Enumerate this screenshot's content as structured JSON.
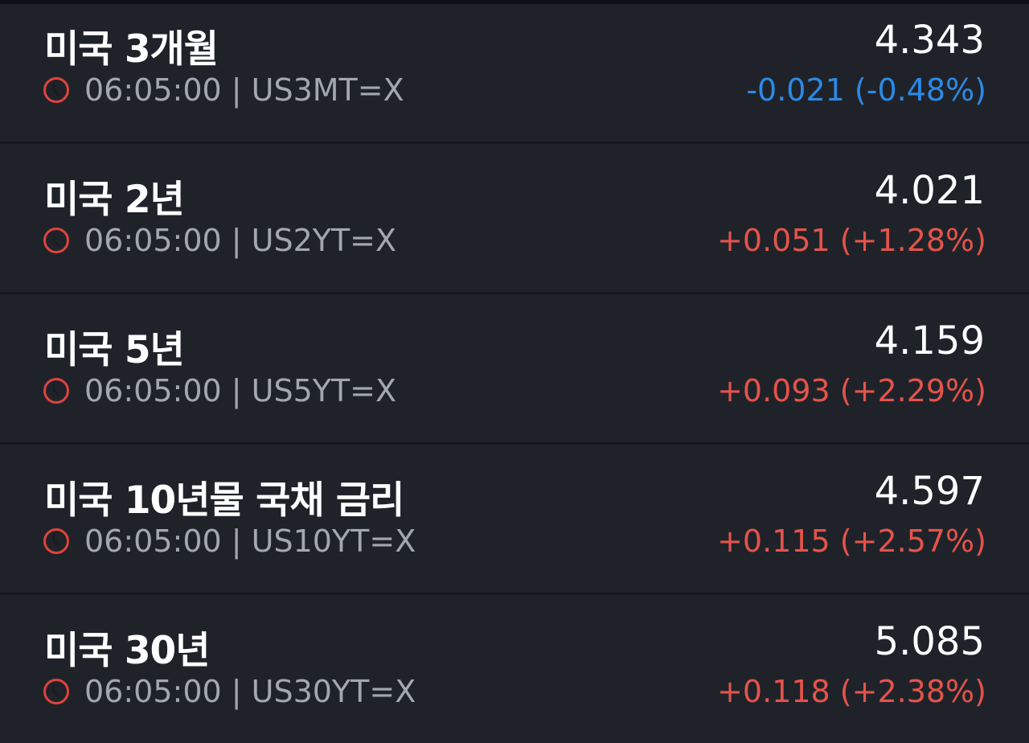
{
  "colors": {
    "up": "#e5534b",
    "down": "#2b8ae6",
    "clock": "#e0433c"
  },
  "items": [
    {
      "name": "미국 3개월",
      "time": "06:05:00",
      "symbol": "US3MT=X",
      "price": "4.343",
      "change": "-0.021 (-0.48%)",
      "direction": "down"
    },
    {
      "name": "미국 2년",
      "time": "06:05:00",
      "symbol": "US2YT=X",
      "price": "4.021",
      "change": "+0.051 (+1.28%)",
      "direction": "up"
    },
    {
      "name": "미국 5년",
      "time": "06:05:00",
      "symbol": "US5YT=X",
      "price": "4.159",
      "change": "+0.093 (+2.29%)",
      "direction": "up"
    },
    {
      "name": "미국 10년물 국채 금리",
      "time": "06:05:00",
      "symbol": "US10YT=X",
      "price": "4.597",
      "change": "+0.115 (+2.57%)",
      "direction": "up"
    },
    {
      "name": "미국 30년",
      "time": "06:05:00",
      "symbol": "US30YT=X",
      "price": "5.085",
      "change": "+0.118 (+2.38%)",
      "direction": "up"
    }
  ]
}
